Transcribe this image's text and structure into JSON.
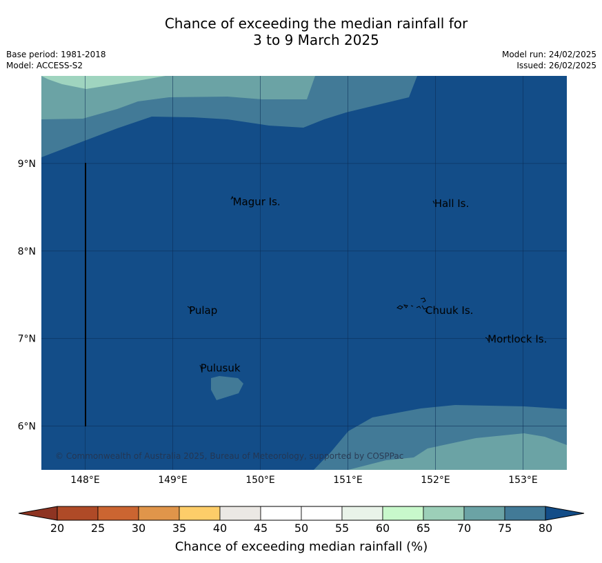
{
  "title_line1": "Chance of exceeding the median rainfall for",
  "title_line2": "3 to 9 March 2025",
  "base_period": "Base period: 1981-2018",
  "model": "Model: ACCESS-S2",
  "model_run": "Model run: 24/02/2025",
  "issued": "Issued: 26/02/2025",
  "copyright": "© Commonwealth of Australia 2025, Bureau of Meteorology, supported by COSPPac",
  "map": {
    "lon_range": [
      147.5,
      153.5
    ],
    "lat_range": [
      5.5,
      10.0
    ],
    "lat_ticks": [
      {
        "value": 9,
        "label": "9°N"
      },
      {
        "value": 8,
        "label": "8°N"
      },
      {
        "value": 7,
        "label": "7°N"
      },
      {
        "value": 6,
        "label": "6°N"
      }
    ],
    "lon_ticks": [
      {
        "value": 148,
        "label": "148°E"
      },
      {
        "value": 149,
        "label": "149°E"
      },
      {
        "value": 150,
        "label": "150°E"
      },
      {
        "value": 151,
        "label": "151°E"
      },
      {
        "value": 152,
        "label": "152°E"
      },
      {
        "value": 153,
        "label": "153°E"
      }
    ],
    "places": [
      {
        "name": "Magur Is.",
        "lon": 149.67,
        "lat": 8.57
      },
      {
        "name": "Hall Is.",
        "lon": 151.97,
        "lat": 8.55
      },
      {
        "name": "Pulap",
        "lon": 149.17,
        "lat": 7.33
      },
      {
        "name": "Chuuk Is.",
        "lon": 151.87,
        "lat": 7.33
      },
      {
        "name": "Mortlock Is.",
        "lon": 152.58,
        "lat": 7.0
      },
      {
        "name": "Pulusuk",
        "lon": 149.3,
        "lat": 6.67
      }
    ],
    "bands": {
      "light_70_75": "#9fd4bf",
      "mid_75_80": "#6ba3a5",
      "dark_80_85": "#427a97",
      "deep_above_85": "#134d88"
    }
  },
  "colorbar": {
    "title": "Chance of exceeding median rainfall (%)",
    "ticks": [
      "20",
      "25",
      "30",
      "35",
      "40",
      "45",
      "50",
      "55",
      "60",
      "65",
      "70",
      "75",
      "80"
    ],
    "colors": [
      "#af4a27",
      "#cb6531",
      "#e0954a",
      "#fdcd69",
      "#ebe8e4",
      "#ffffff",
      "#ffffff",
      "#e9f3e9",
      "#c8f8cb",
      "#9ccfb8",
      "#6ba3a5",
      "#427a97"
    ],
    "low_extend_color": "#8e3422",
    "high_extend_color": "#134d88"
  }
}
